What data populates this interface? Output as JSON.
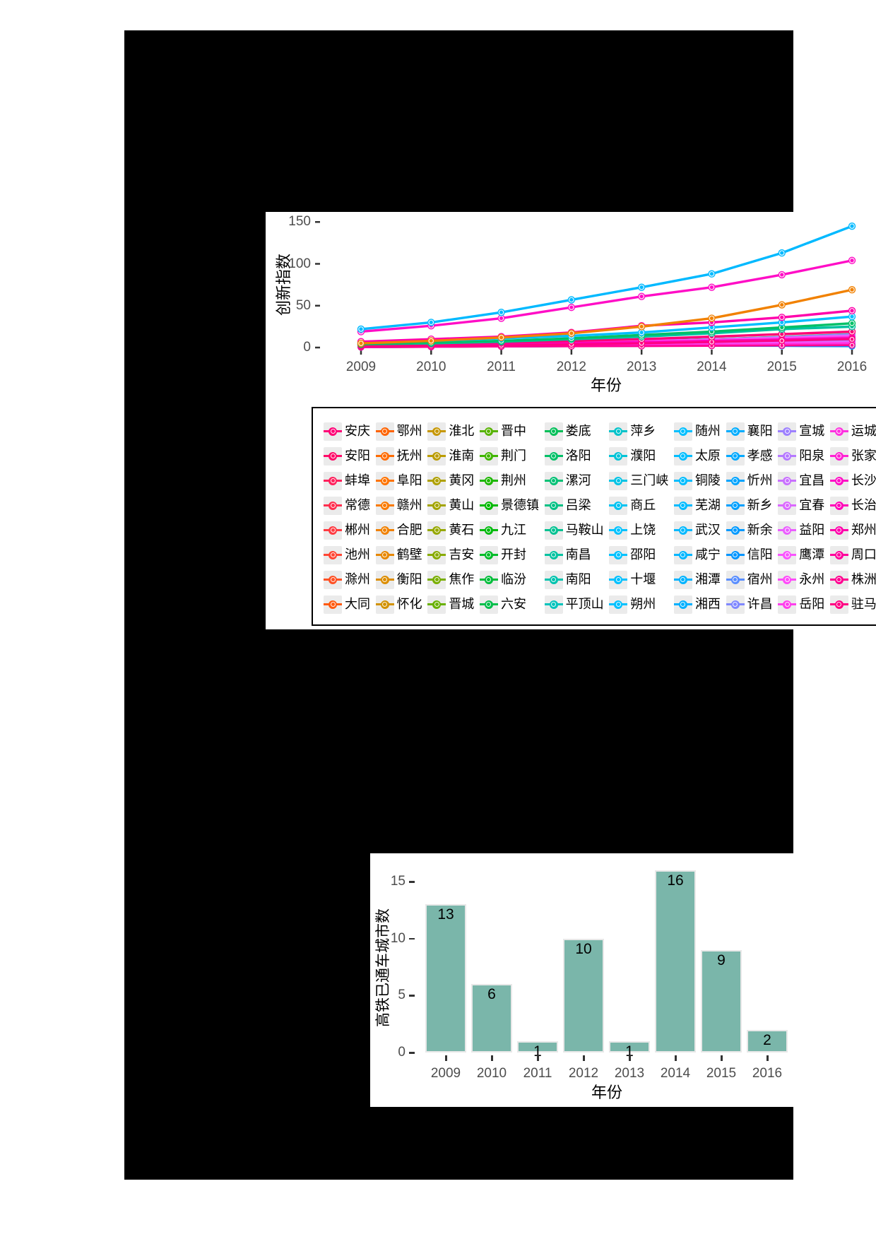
{
  "page": {
    "outer_background": "#ffffff",
    "figure_background": "#000000"
  },
  "palette": {
    "model": "hcl",
    "hue_start": 15,
    "hue_step": 4.5,
    "chroma": 100,
    "luminance": 65
  },
  "colors": {
    "bar_fill": "#7ab6aa",
    "bar_border": "#e8e8e8",
    "axis_text": "#4d4d4d",
    "axis_title": "#000000",
    "tick_mark": "#333333",
    "legend_key_bg": "#ebebeb",
    "legend_border": "#000000",
    "panel_bg": "#ffffff"
  },
  "chart_data": [
    {
      "type": "line",
      "title": "",
      "xlabel": "年份",
      "ylabel": "创新指数",
      "x": [
        2009,
        2010,
        2011,
        2012,
        2013,
        2014,
        2015,
        2016
      ],
      "x_tick_labels": [
        "2009",
        "2010",
        "2011",
        "2012",
        "2013",
        "2014",
        "2015",
        "2016"
      ],
      "y_ticks": [
        0,
        50,
        100,
        150
      ],
      "ylim": [
        0,
        150
      ],
      "grid": false,
      "legend_position": "bottom-box",
      "legend_layout": {
        "columns": 10,
        "rows": 8,
        "order": "column-major"
      },
      "series": [
        {
          "city": "武汉",
          "estimated": true,
          "values": [
            22,
            30,
            42,
            57,
            72,
            88,
            113,
            145
          ]
        },
        {
          "city": "长沙",
          "estimated": true,
          "values": [
            19,
            26,
            35,
            48,
            61,
            72,
            87,
            104
          ]
        },
        {
          "city": "合肥",
          "estimated": true,
          "values": [
            5,
            8,
            12,
            17,
            25,
            35,
            51,
            69
          ]
        },
        {
          "city": "郑州",
          "estimated": true,
          "values": [
            7,
            10,
            13,
            18,
            26,
            30,
            36,
            44
          ]
        },
        {
          "city": "太原",
          "estimated": true,
          "values": [
            6,
            8,
            11,
            14,
            18,
            24,
            30,
            37
          ]
        },
        {
          "city": "洛阳",
          "estimated": true,
          "values": [
            4,
            6,
            8,
            11,
            15,
            19,
            24,
            29
          ]
        },
        {
          "city": "南昌",
          "estimated": true,
          "values": [
            4,
            5,
            7,
            10,
            13,
            17,
            22,
            25
          ]
        },
        {
          "city": "安庆",
          "estimated": true,
          "values": [
            3,
            4,
            6,
            8,
            10,
            13,
            16,
            19
          ]
        }
      ],
      "unlabeled_series_note": "remaining 72 city lines overlap in a dense band rising from ~0-7 (2009) to ~1-18 (2016)",
      "unlabeled_series_range_2016": [
        1,
        18
      ],
      "legend_cities": [
        "安庆",
        "安阳",
        "蚌埠",
        "常德",
        "郴州",
        "池州",
        "滁州",
        "大同",
        "鄂州",
        "抚州",
        "阜阳",
        "赣州",
        "合肥",
        "鹤壁",
        "衡阳",
        "怀化",
        "淮北",
        "淮南",
        "黄冈",
        "黄山",
        "黄石",
        "吉安",
        "焦作",
        "晋城",
        "晋中",
        "荆门",
        "荆州",
        "景德镇",
        "九江",
        "开封",
        "临汾",
        "六安",
        "娄底",
        "洛阳",
        "漯河",
        "吕梁",
        "马鞍山",
        "南昌",
        "南阳",
        "平顶山",
        "萍乡",
        "濮阳",
        "三门峡",
        "商丘",
        "上饶",
        "邵阳",
        "十堰",
        "朔州",
        "随州",
        "太原",
        "铜陵",
        "芜湖",
        "武汉",
        "咸宁",
        "湘潭",
        "湘西",
        "襄阳",
        "孝感",
        "忻州",
        "新乡",
        "新余",
        "信阳",
        "宿州",
        "许昌",
        "宣城",
        "阳泉",
        "宜昌",
        "宜春",
        "益阳",
        "鹰潭",
        "永州",
        "岳阳",
        "运城",
        "张家界",
        "长沙",
        "长治",
        "郑州",
        "周口",
        "株洲",
        "驻马店"
      ]
    },
    {
      "type": "bar",
      "title": "",
      "xlabel": "年份",
      "ylabel": "高铁已通车城市数",
      "categories": [
        "2009",
        "2010",
        "2011",
        "2012",
        "2013",
        "2014",
        "2015",
        "2016"
      ],
      "values": [
        13,
        6,
        1,
        10,
        1,
        16,
        9,
        2
      ],
      "bar_labels": [
        "13",
        "6",
        "1",
        "10",
        "1",
        "16",
        "9",
        "2"
      ],
      "y_ticks": [
        0,
        5,
        10,
        15
      ],
      "ylim": [
        0,
        16
      ],
      "grid": false
    }
  ]
}
